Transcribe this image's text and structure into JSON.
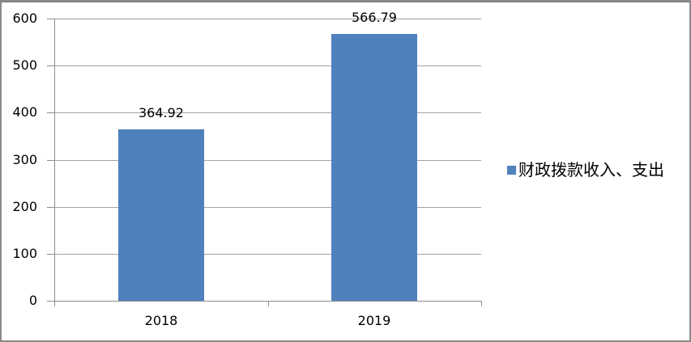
{
  "chart_data": {
    "type": "bar",
    "categories": [
      "2018",
      "2019"
    ],
    "series": [
      {
        "name": "财政拨款收入、支出",
        "values": [
          364.92,
          566.79
        ]
      }
    ],
    "data_labels": [
      "364.92",
      "566.79"
    ],
    "title": "",
    "xlabel": "",
    "ylabel": "",
    "ylim": [
      0,
      600
    ],
    "yticks": [
      0,
      100,
      200,
      300,
      400,
      500,
      600
    ],
    "grid": true,
    "legend_position": "right",
    "colors": {
      "bar": "#4F81BD",
      "gridline": "#A3A3A3",
      "axis": "#8E8E8E",
      "text": "#000000",
      "frame_border": "#8A8A8A"
    }
  },
  "legend": {
    "items": [
      {
        "label": "财政拨款收入、支出",
        "swatch_color": "#4F81BD"
      }
    ]
  }
}
